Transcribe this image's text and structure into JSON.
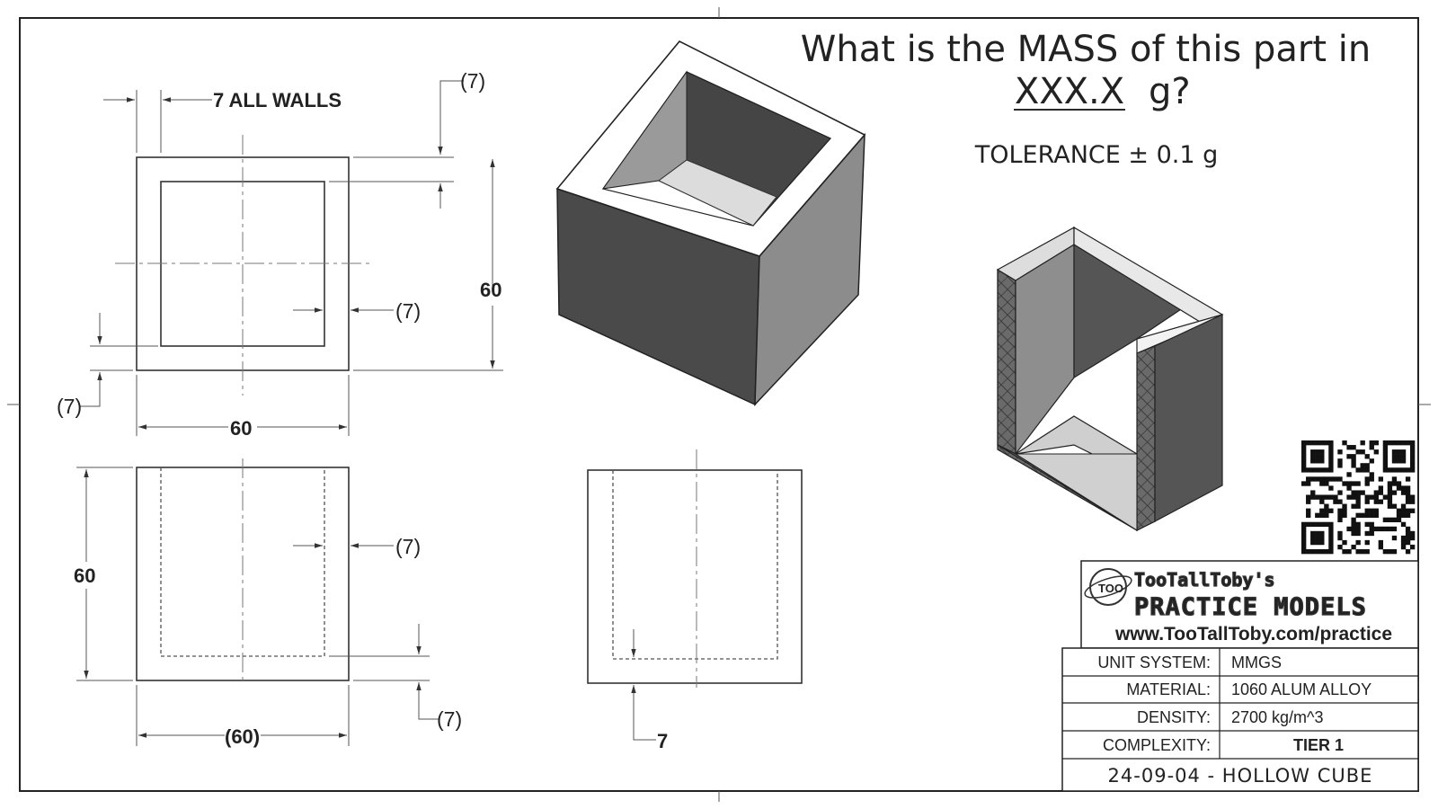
{
  "question": {
    "line1": "What is the MASS of this part in",
    "answer_format": "XXX.X",
    "unit_suffix": "g?",
    "tolerance": "TOLERANCE ± 0.1 g"
  },
  "dimensions": {
    "wall_note": "7 ALL WALLS",
    "top_ref_top": "(7)",
    "top_ref_right": "(7)",
    "top_ref_bottom_left": "(7)",
    "top_height": "60",
    "top_width": "60",
    "front_height": "60",
    "front_ref_right": "(7)",
    "front_ref_bottom": "(7)",
    "front_width": "(60)",
    "side_floor": "7"
  },
  "brand": {
    "name": "TooTallToby's",
    "product": "PRACTICE MODELS",
    "url": "www.TooTallToby.com/practice"
  },
  "title_block": {
    "rows": [
      {
        "label": "UNIT SYSTEM:",
        "value": "MMGS"
      },
      {
        "label": "MATERIAL:",
        "value": "1060 ALUM ALLOY"
      },
      {
        "label": "DENSITY:",
        "value": "2700 kg/m^3"
      },
      {
        "label": "COMPLEXITY:",
        "value": "TIER 1"
      }
    ],
    "drawing_name": "24-09-04 - HOLLOW CUBE"
  },
  "colors": {
    "line": "#333333",
    "shade_dark": "#4a4a4a",
    "shade_mid": "#8a8a8a",
    "shade_light": "#d6d6d6"
  }
}
